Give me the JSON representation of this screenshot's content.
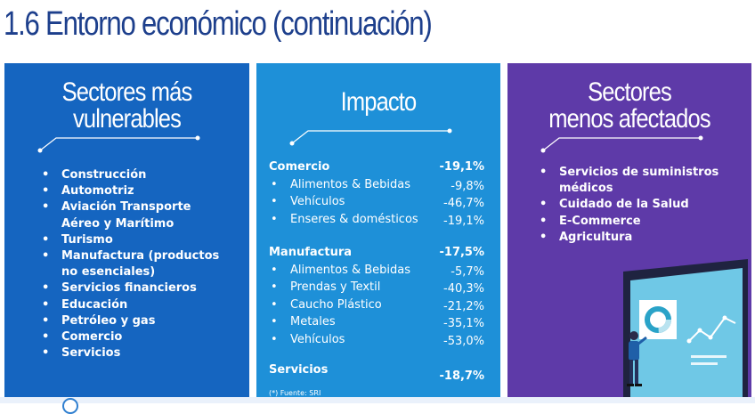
{
  "page_title": "1.6 Entorno económico (continuación)",
  "panels": {
    "vulnerables": {
      "title_line1": "Sectores más",
      "title_line2": "vulnerables",
      "items": [
        "Construcción",
        "Automotriz",
        "Aviación Transporte Aéreo y Marítimo",
        "Turismo",
        "Manufactura (productos no esenciales)",
        "Servicios financieros",
        "Educación",
        "Petróleo y gas",
        "Comercio",
        "Servicios"
      ]
    },
    "impacto": {
      "title": "Impacto",
      "groups": [
        {
          "name": "Comercio",
          "value": "-19,1%",
          "items": [
            {
              "label": "Alimentos & Bebidas",
              "value": "-9,8%"
            },
            {
              "label": "Vehículos",
              "value": "-46,7%"
            },
            {
              "label": "Enseres & domésticos",
              "value": "-19,1%"
            }
          ]
        },
        {
          "name": "Manufactura",
          "value": "-17,5%",
          "items": [
            {
              "label": "Alimentos & Bebidas",
              "value": "-5,7%"
            },
            {
              "label": "Prendas y Textil",
              "value": "-40,3%"
            },
            {
              "label": "Caucho Plástico",
              "value": "-21,2%"
            },
            {
              "label": "Metales",
              "value": "-35,1%"
            },
            {
              "label": "Vehículos",
              "value": "-53,0%"
            }
          ]
        },
        {
          "name": "Servicios",
          "value": "-18,7%",
          "items": []
        }
      ],
      "footnote": "(*) Fuente: SRI"
    },
    "menos_afectados": {
      "title_line1": "Sectores",
      "title_line2": "menos afectados",
      "items": [
        "Servicios de suministros médicos",
        "Cuidado de la Salud",
        "E-Commerce",
        "Agricultura"
      ]
    }
  },
  "colors": {
    "title": "#1d3f8c",
    "panel_vulnerables": "#1565c0",
    "panel_impacto": "#1e90d8",
    "panel_menos_afectados": "#5e3aa8"
  },
  "icons": [
    "presentation-screen-illustration",
    "person-illustration",
    "donut-chart-icon",
    "line-chart-icon"
  ]
}
